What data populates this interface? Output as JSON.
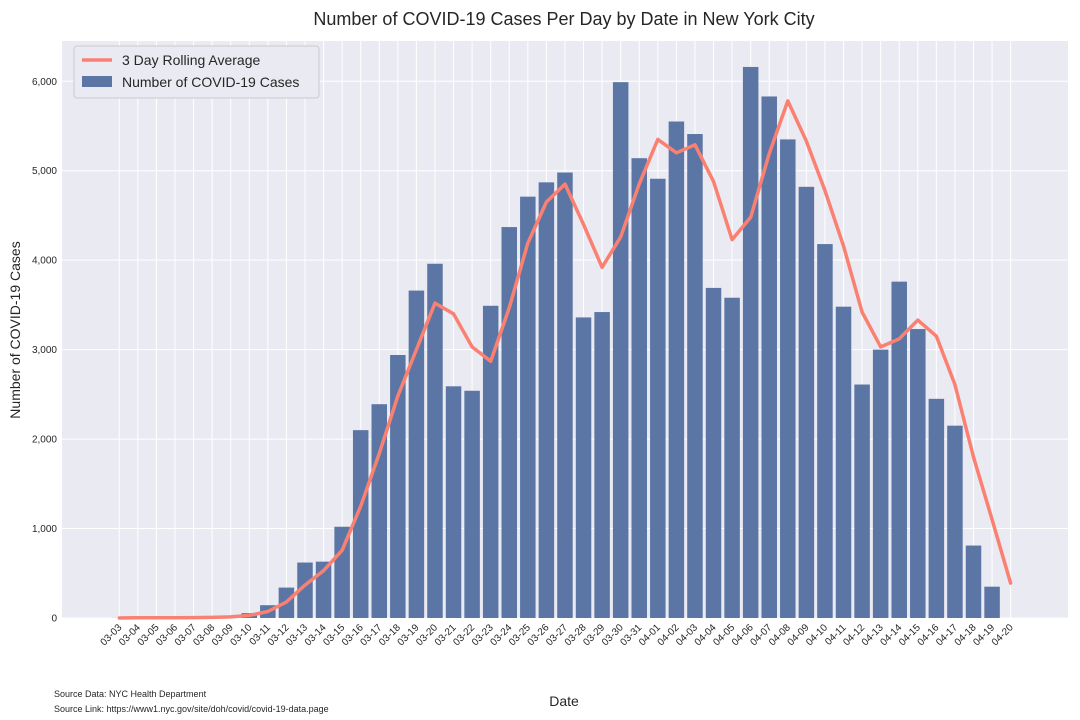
{
  "chart_data": {
    "type": "bar",
    "title": "Number of COVID-19 Cases Per Day by Date in New York City",
    "xlabel": "Date",
    "ylabel": "Number of COVID-19 Cases",
    "ylim": [
      0,
      6450
    ],
    "yticks": [
      0,
      1000,
      2000,
      3000,
      4000,
      5000,
      6000
    ],
    "ytick_labels": [
      "0",
      "1,000",
      "2,000",
      "3,000",
      "4,000",
      "5,000",
      "6,000"
    ],
    "grid": true,
    "legend_position": "top-left",
    "categories": [
      "03-03",
      "03-04",
      "03-05",
      "03-06",
      "03-07",
      "03-08",
      "03-09",
      "03-10",
      "03-11",
      "03-12",
      "03-13",
      "03-14",
      "03-15",
      "03-16",
      "03-17",
      "03-18",
      "03-19",
      "03-20",
      "03-21",
      "03-22",
      "03-23",
      "03-24",
      "03-25",
      "03-26",
      "03-27",
      "03-28",
      "03-29",
      "03-30",
      "03-31",
      "04-01",
      "04-02",
      "04-03",
      "04-04",
      "04-05",
      "04-06",
      "04-07",
      "04-08",
      "04-09",
      "04-10",
      "04-11",
      "04-12",
      "04-13",
      "04-14",
      "04-15",
      "04-16",
      "04-17",
      "04-18",
      "04-19",
      "04-20"
    ],
    "series": [
      {
        "name": "Number of COVID-19 Cases",
        "type": "bar",
        "color": "#5b76a5",
        "values": [
          1,
          3,
          1,
          5,
          5,
          10,
          21,
          55,
          143,
          340,
          620,
          630,
          1020,
          2100,
          2390,
          2940,
          3660,
          3960,
          2590,
          2540,
          3490,
          4370,
          4710,
          4870,
          4980,
          3360,
          3420,
          5990,
          5140,
          4910,
          5550,
          5410,
          3690,
          3580,
          6160,
          5830,
          5350,
          4820,
          4180,
          3480,
          2610,
          3000,
          3760,
          3230,
          2450,
          2150,
          810,
          350,
          0
        ]
      },
      {
        "name": "3 Day Rolling Average",
        "type": "line",
        "color": "#fa8072",
        "values": [
          0,
          2,
          2,
          3,
          4,
          7,
          12,
          29,
          73,
          179,
          368,
          530,
          757,
          1250,
          1840,
          2480,
          3000,
          3520,
          3400,
          3030,
          2870,
          3470,
          4190,
          4650,
          4850,
          4400,
          3920,
          4260,
          4850,
          5350,
          5200,
          5290,
          4880,
          4230,
          4480,
          5190,
          5780,
          5330,
          4780,
          4160,
          3420,
          3030,
          3120,
          3330,
          3150,
          2610,
          1800,
          1100,
          390
        ]
      }
    ],
    "sources": [
      "Source Data: NYC Health Department",
      "Source Link: https://www1.nyc.gov/site/doh/covid/covid-19-data.page"
    ]
  }
}
